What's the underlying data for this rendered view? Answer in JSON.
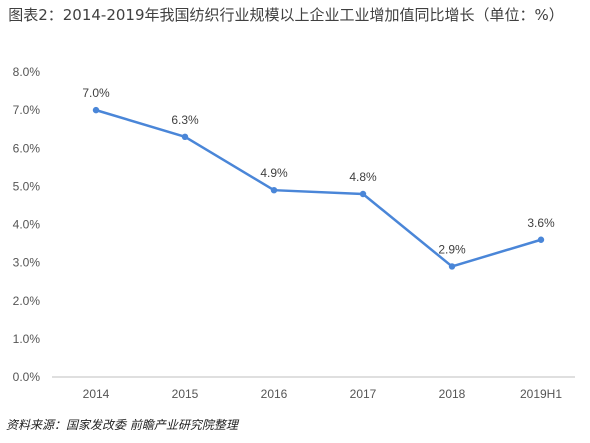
{
  "title": "图表2：2014-2019年我国纺织行业规模以上企业工业增加值同比增长（单位：%）",
  "source": "资料来源：国家发改委 前瞻产业研究院整理",
  "colors": {
    "line": "#4a86d8",
    "axis": "#bfbfbf",
    "text": "#555555"
  },
  "chart_data": {
    "type": "line",
    "title": "图表2：2014-2019年我国纺织行业规模以上企业工业增加值同比增长（单位：%）",
    "categories": [
      "2014",
      "2015",
      "2016",
      "2017",
      "2018",
      "2019H1"
    ],
    "series": [
      {
        "values": [
          7.0,
          6.3,
          4.9,
          4.8,
          2.9,
          3.6
        ]
      }
    ],
    "data_labels": [
      "7.0%",
      "6.3%",
      "4.9%",
      "4.8%",
      "2.9%",
      "3.6%"
    ],
    "y_ticks": [
      "0.0%",
      "1.0%",
      "2.0%",
      "3.0%",
      "4.0%",
      "5.0%",
      "6.0%",
      "7.0%",
      "8.0%"
    ],
    "ylim": [
      0,
      8
    ],
    "grid": false,
    "legend": "none"
  }
}
